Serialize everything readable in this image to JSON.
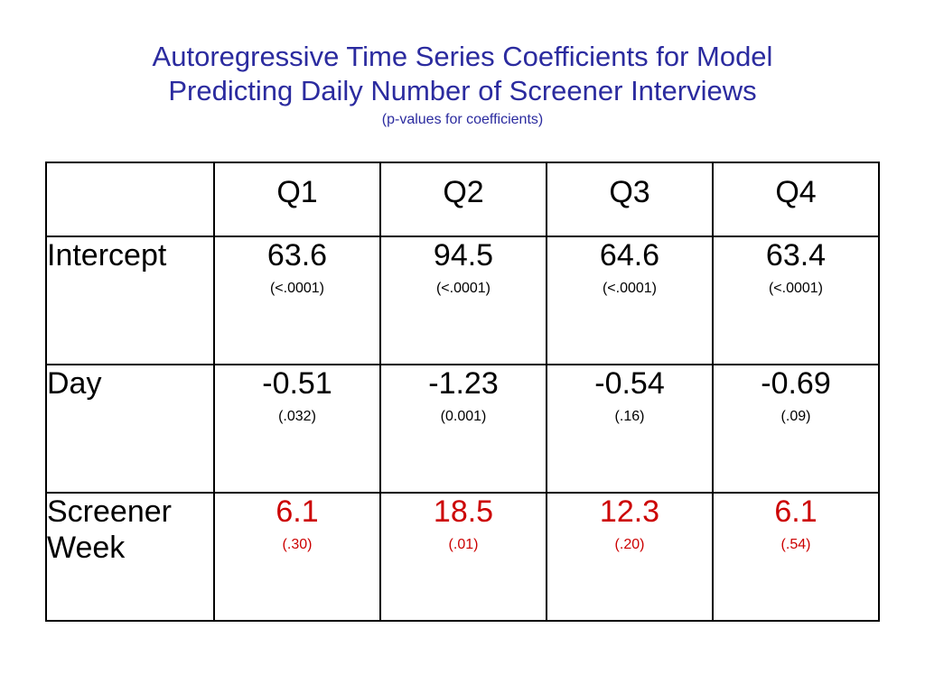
{
  "title": {
    "line1": "Autoregressive Time Series Coefficients for Model",
    "line2": "Predicting Daily Number of Screener Interviews",
    "subtitle": "(p-values for coefficients)"
  },
  "colors": {
    "title": "#2b2b9f",
    "highlight": "#cc0000",
    "text": "#000000"
  },
  "table": {
    "corner": "",
    "columns": [
      "Q1",
      "Q2",
      "Q3",
      "Q4"
    ],
    "rows": [
      {
        "label": "Intercept",
        "highlight": false,
        "cells": [
          {
            "value": "63.6",
            "p": "(<.0001)"
          },
          {
            "value": "94.5",
            "p": "(<.0001)"
          },
          {
            "value": "64.6",
            "p": "(<.0001)"
          },
          {
            "value": "63.4",
            "p": "(<.0001)"
          }
        ]
      },
      {
        "label": "Day",
        "highlight": false,
        "cells": [
          {
            "value": "-0.51",
            "p": "(.032)"
          },
          {
            "value": "-1.23",
            "p": "(0.001)"
          },
          {
            "value": "-0.54",
            "p": "(.16)"
          },
          {
            "value": "-0.69",
            "p": "(.09)"
          }
        ]
      },
      {
        "label": "Screener Week",
        "highlight": true,
        "cells": [
          {
            "value": "6.1",
            "p": "(.30)"
          },
          {
            "value": "18.5",
            "p": "(.01)"
          },
          {
            "value": "12.3",
            "p": "(.20)"
          },
          {
            "value": "6.1",
            "p": "(.54)"
          }
        ]
      }
    ]
  }
}
